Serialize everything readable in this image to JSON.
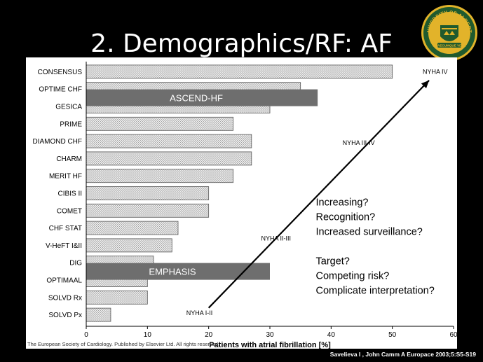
{
  "slide": {
    "title": "2. Demographics/RF: AF",
    "citation": "Savelieva I , John Camm A Europace 2003;5:S5-S19",
    "copyright": "The European Society of Cardiology. Published by Elsevier Ltd. All rights reserved.",
    "logo": {
      "top_text": "UNIVERSITY OF ALBERTA",
      "motto": "QUAECUMQUE VERA",
      "colors": {
        "green": "#1f5a2e",
        "gold": "#e2b32a"
      }
    }
  },
  "chart_data": {
    "type": "bar",
    "orientation": "horizontal",
    "xlabel": "Patients with atrial fibrillation [%]",
    "ylabel": "",
    "xlim": [
      0,
      60
    ],
    "xticks": [
      0,
      10,
      20,
      30,
      40,
      50,
      60
    ],
    "categories": [
      "CONSENSUS",
      "OPTIME CHF",
      "GESICA",
      "PRIME",
      "DIAMOND CHF",
      "CHARM",
      "MERIT HF",
      "CIBIS II",
      "COMET",
      "CHF STAT",
      "V-HeFT I&II",
      "DIG",
      "OPTIMAAL",
      "SOLVD Rx",
      "SOLVD Px"
    ],
    "values": [
      50,
      35,
      30,
      24,
      27,
      27,
      24,
      20,
      20,
      15,
      14,
      11,
      10,
      10,
      4
    ],
    "bar_fill": "crosshatch",
    "overlays": [
      {
        "label": "ASCEND-HF",
        "category_index": 1.5,
        "value": 37.8,
        "color": "#6e6e6e"
      },
      {
        "label": "EMPHASIS",
        "category_index": 11.5,
        "value": 30,
        "color": "#6e6e6e"
      }
    ],
    "arrow": {
      "from": [
        20,
        13.6
      ],
      "to": [
        56,
        0.5
      ]
    },
    "arrow_labels": [
      {
        "text": "NYHA IV",
        "x": 57,
        "y": 0
      },
      {
        "text": "NYHA III-IV",
        "x": 44.5,
        "y": 4.1
      },
      {
        "text": "NYHA II-III",
        "x": 31,
        "y": 9.6
      },
      {
        "text": "NYHA I-II",
        "x": 18.5,
        "y": 13.9
      }
    ],
    "annotations": [
      "Increasing?",
      "Recognition?",
      "Increased surveillance?",
      "",
      "Target?",
      "Competing risk?",
      "Complicate interpretation?"
    ]
  }
}
